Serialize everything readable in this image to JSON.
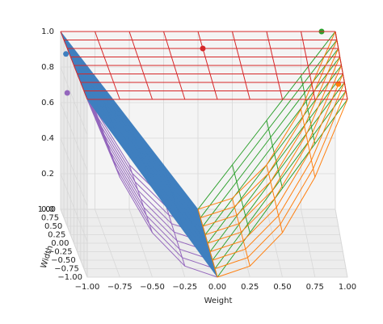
{
  "chart_data": {
    "type": "wireframe3d",
    "xlabel": "Weight",
    "ylabel": "Width",
    "xlim": [
      -1,
      1
    ],
    "ylim": [
      -1,
      1
    ],
    "zlim": [
      0,
      1
    ],
    "xticks": [
      {
        "value": -1,
        "label": "−1.00"
      },
      {
        "value": -0.75,
        "label": "−0.75"
      },
      {
        "value": -0.5,
        "label": "−0.50"
      },
      {
        "value": -0.25,
        "label": "−0.25"
      },
      {
        "value": 0,
        "label": "0.00"
      },
      {
        "value": 0.25,
        "label": "0.25"
      },
      {
        "value": 0.5,
        "label": "0.50"
      },
      {
        "value": 0.75,
        "label": "0.75"
      },
      {
        "value": 1,
        "label": "1.00"
      }
    ],
    "yticks": [
      {
        "value": -1,
        "label": "−1.00"
      },
      {
        "value": -0.75,
        "label": "−0.75"
      },
      {
        "value": -0.5,
        "label": "−0.50"
      },
      {
        "value": -0.25,
        "label": "−0.25"
      },
      {
        "value": 0,
        "label": "0.00"
      },
      {
        "value": 0.25,
        "label": "0.25"
      },
      {
        "value": 0.5,
        "label": "0.50"
      },
      {
        "value": 0.75,
        "label": "0.75"
      },
      {
        "value": 1,
        "label": "1.00"
      }
    ],
    "zticks": [
      {
        "value": 0,
        "label": "0.0"
      },
      0.2,
      0.4,
      0.6,
      0.8,
      {
        "value": 1,
        "label": "1.0"
      }
    ],
    "grid": true,
    "x": [
      -1,
      -0.75,
      -0.5,
      -0.25,
      0,
      0.25,
      0.5,
      0.75,
      1
    ],
    "y": [
      -1,
      -0.75,
      -0.5,
      -0.25,
      0,
      0.25,
      0.5,
      0.75,
      1
    ],
    "series": [
      {
        "color": "#9467bd",
        "style": "wire",
        "marker": [
          -1,
          0.5,
          0.75
        ],
        "z": [
          [
            1,
            0.5625,
            0.25,
            0.0625,
            0,
            null,
            null,
            null,
            null
          ],
          [
            1,
            0.5625,
            0.25,
            0.0625,
            0,
            null,
            null,
            null,
            null
          ],
          [
            1,
            0.5625,
            0.25,
            0.0625,
            0,
            null,
            null,
            null,
            null
          ],
          [
            1,
            0.5625,
            0.25,
            0.0625,
            0,
            null,
            null,
            null,
            null
          ],
          [
            1,
            0.5625,
            0.25,
            0.0625,
            0,
            null,
            null,
            null,
            null
          ],
          [
            1,
            0.5625,
            0.25,
            0.0625,
            0,
            null,
            null,
            null,
            null
          ],
          [
            1,
            0.5625,
            0.25,
            0.0625,
            0,
            null,
            null,
            null,
            null
          ],
          [
            1,
            0.5625,
            0.25,
            0.0625,
            0,
            null,
            null,
            null,
            null
          ],
          [
            1,
            0.5625,
            0.25,
            0.0625,
            0,
            null,
            null,
            null,
            null
          ]
        ]
      },
      {
        "color": "#3f7fbf",
        "style": "surface",
        "marker": [
          -1,
          0.6,
          0.95
        ],
        "z": [
          [
            1,
            0.75,
            0.5,
            0.25,
            0,
            null,
            null,
            null,
            null
          ],
          [
            1,
            0.75,
            0.5,
            0.25,
            0,
            null,
            null,
            null,
            null
          ],
          [
            1,
            0.75,
            0.5,
            0.25,
            0,
            null,
            null,
            null,
            null
          ],
          [
            1,
            0.75,
            0.5,
            0.25,
            0,
            null,
            null,
            null,
            null
          ],
          [
            1,
            0.75,
            0.5,
            0.25,
            0,
            null,
            null,
            null,
            null
          ],
          [
            1,
            0.75,
            0.5,
            0.25,
            0,
            null,
            null,
            null,
            null
          ],
          [
            1,
            0.75,
            0.5,
            0.25,
            0,
            null,
            null,
            null,
            null
          ],
          [
            1,
            0.75,
            0.5,
            0.25,
            0,
            null,
            null,
            null,
            null
          ],
          [
            1,
            0.75,
            0.5,
            0.25,
            0,
            null,
            null,
            null,
            null
          ]
        ]
      },
      {
        "color": "#2ca02c",
        "style": "wire",
        "marker": [
          0.9,
          1,
          1
        ],
        "z": [
          [
            null,
            null,
            null,
            null,
            0,
            0.25,
            0.5,
            0.75,
            1
          ],
          [
            null,
            null,
            null,
            null,
            0,
            0.25,
            0.5,
            0.75,
            1
          ],
          [
            null,
            null,
            null,
            null,
            0,
            0.25,
            0.5,
            0.75,
            1
          ],
          [
            null,
            null,
            null,
            null,
            0,
            0.25,
            0.5,
            0.75,
            1
          ],
          [
            null,
            null,
            null,
            null,
            0,
            0.25,
            0.5,
            0.75,
            1
          ],
          [
            null,
            null,
            null,
            null,
            0,
            0.25,
            0.5,
            0.75,
            1
          ],
          [
            null,
            null,
            null,
            null,
            0,
            0.25,
            0.5,
            0.75,
            1
          ],
          [
            null,
            null,
            null,
            null,
            0,
            0.25,
            0.5,
            0.75,
            1
          ],
          [
            null,
            null,
            null,
            null,
            0,
            0.25,
            0.5,
            0.75,
            1
          ]
        ]
      },
      {
        "color": "#ff7f0e",
        "style": "wire",
        "marker": [
          1,
          0.5,
          0.8
        ],
        "z": [
          [
            null,
            null,
            null,
            null,
            0,
            0.0625,
            0.25,
            0.5625,
            1
          ],
          [
            null,
            null,
            null,
            null,
            0,
            0.0625,
            0.25,
            0.5625,
            1
          ],
          [
            null,
            null,
            null,
            null,
            0,
            0.0625,
            0.25,
            0.5625,
            1
          ],
          [
            null,
            null,
            null,
            null,
            0,
            0.0625,
            0.25,
            0.5625,
            1
          ],
          [
            null,
            null,
            null,
            null,
            0,
            0.0625,
            0.25,
            0.5625,
            1
          ],
          [
            null,
            null,
            null,
            null,
            0,
            0.0625,
            0.25,
            0.5625,
            1
          ],
          [
            null,
            null,
            null,
            null,
            0,
            0.0625,
            0.25,
            0.5625,
            1
          ],
          [
            null,
            null,
            null,
            null,
            0,
            0.0625,
            0.25,
            0.5625,
            1
          ],
          [
            null,
            null,
            null,
            null,
            0,
            0.0625,
            0.25,
            0.5625,
            1
          ]
        ]
      },
      {
        "color": "#d62728",
        "style": "wire",
        "marker": [
          0,
          0.5,
          1
        ],
        "z": [
          [
            1,
            1,
            1,
            1,
            1,
            1,
            1,
            1,
            1
          ],
          [
            1,
            1,
            1,
            1,
            1,
            1,
            1,
            1,
            1
          ],
          [
            1,
            1,
            1,
            1,
            1,
            1,
            1,
            1,
            1
          ],
          [
            1,
            1,
            1,
            1,
            1,
            1,
            1,
            1,
            1
          ],
          [
            1,
            1,
            1,
            1,
            1,
            1,
            1,
            1,
            1
          ],
          [
            1,
            1,
            1,
            1,
            1,
            1,
            1,
            1,
            1
          ],
          [
            1,
            1,
            1,
            1,
            1,
            1,
            1,
            1,
            1
          ],
          [
            1,
            1,
            1,
            1,
            1,
            1,
            1,
            1,
            1
          ],
          [
            1,
            1,
            1,
            1,
            1,
            1,
            1,
            1,
            1
          ]
        ]
      }
    ]
  }
}
